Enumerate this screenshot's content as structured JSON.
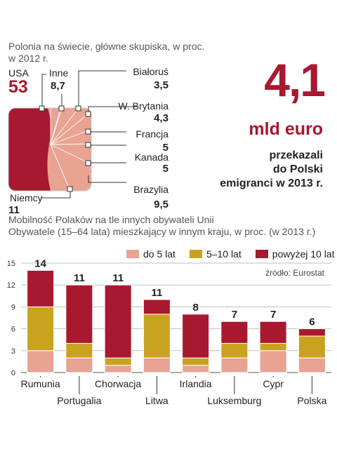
{
  "colors": {
    "dark_red": "#a8182e",
    "light_pink": "#e8a392",
    "gold": "#c9a21f",
    "connector": "#333333"
  },
  "top": {
    "subtitle_1": "Polonia na świecie, główne skupiska, w proc.",
    "subtitle_2": "w 2012  r.",
    "usa_label": "USA",
    "usa_value": "53",
    "inne_label": "Inne",
    "inne_value": "8,7",
    "niemcy_label": "Niemcy",
    "niemcy_value": "11",
    "right_labels": [
      {
        "label": "Białoruś",
        "value": "3,5"
      },
      {
        "label": "W. Brytania",
        "value": "4,3"
      },
      {
        "label": "Francja",
        "value": "5"
      },
      {
        "label": "Kanada",
        "value": "5"
      },
      {
        "label": "Brazylia",
        "value": "9,5"
      }
    ]
  },
  "stat": {
    "number": "4,1",
    "unit": "mld euro",
    "line1": "przekazali",
    "line2": "do Polski",
    "line3": "emigranci w 2013 r."
  },
  "chart_data": [
    {
      "type": "pie",
      "title": "Polonia na świecie, główne skupiska, w proc.",
      "subtitle": "w 2012  r.",
      "slices": [
        {
          "name": "USA",
          "value": 53
        },
        {
          "name": "Inne",
          "value": 8.7
        },
        {
          "name": "Białoruś",
          "value": 3.5
        },
        {
          "name": "W. Brytania",
          "value": 4.3
        },
        {
          "name": "Francja",
          "value": 5
        },
        {
          "name": "Kanada",
          "value": 5
        },
        {
          "name": "Brazylia",
          "value": 9.5
        },
        {
          "name": "Niemcy",
          "value": 11
        }
      ]
    },
    {
      "type": "bar",
      "stacked": true,
      "title": "Mobilność Polaków na tle innych obywateli Unii",
      "subtitle": "Obywatele (15–64 lata)  mieszkający w innym kraju, w proc. (w 2013 r.)",
      "source": "źródło: Eurostat",
      "categories": [
        "Rumunia",
        "Portugalia",
        "Chorwacja",
        "Litwa",
        "Irlandia",
        "Luksemburg",
        "Cypr",
        "Polska"
      ],
      "totals": [
        "14",
        "11",
        "11",
        "11",
        "8",
        "7",
        "7",
        "6"
      ],
      "series": [
        {
          "name": "do 5 lat",
          "color": "#e8a392",
          "values": [
            3,
            2,
            1,
            2,
            1,
            2,
            3,
            2
          ]
        },
        {
          "name": "5–10 lat",
          "color": "#c9a21f",
          "values": [
            6,
            2,
            1,
            6,
            1,
            2,
            1,
            3
          ]
        },
        {
          "name": "powyżej 10 lat",
          "color": "#a8182e",
          "values": [
            5,
            8,
            10,
            2,
            6,
            3,
            3,
            1
          ]
        }
      ],
      "ylim": [
        0,
        15
      ],
      "yticks": [
        0,
        3,
        6,
        9,
        12,
        15
      ],
      "grid": true,
      "legend": "top-right"
    }
  ]
}
